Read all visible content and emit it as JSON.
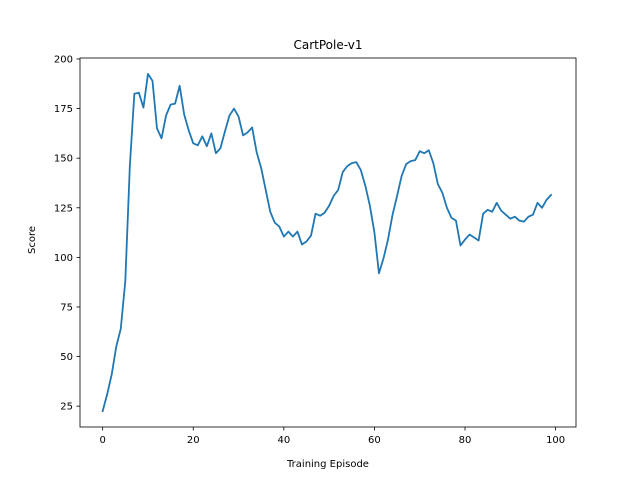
{
  "chart_data": {
    "type": "line",
    "title": "CartPole-v1",
    "xlabel": "Training Episode",
    "ylabel": "Score",
    "xlim": [
      -5,
      104.5
    ],
    "ylim": [
      14.5,
      200.5
    ],
    "xticks": [
      0,
      20,
      40,
      60,
      80,
      100
    ],
    "yticks": [
      25,
      50,
      75,
      100,
      125,
      150,
      175,
      200
    ],
    "grid": false,
    "legend": "none",
    "series": [
      {
        "color": "#1f77b4",
        "x": [
          0,
          1,
          2,
          3,
          4,
          5,
          6,
          7,
          8,
          9,
          10,
          11,
          12,
          13,
          14,
          15,
          16,
          17,
          18,
          19,
          20,
          21,
          22,
          23,
          24,
          25,
          26,
          27,
          28,
          29,
          30,
          31,
          32,
          33,
          34,
          35,
          36,
          37,
          38,
          39,
          40,
          41,
          42,
          43,
          44,
          45,
          46,
          47,
          48,
          49,
          50,
          51,
          52,
          53,
          54,
          55,
          56,
          57,
          58,
          59,
          60,
          61,
          62,
          63,
          64,
          65,
          66,
          67,
          68,
          69,
          70,
          71,
          72,
          73,
          74,
          75,
          76,
          77,
          78,
          79,
          80,
          81,
          82,
          83,
          84,
          85,
          86,
          87,
          88,
          89,
          90,
          91,
          92,
          93,
          94,
          95,
          96,
          97,
          98,
          99
        ],
        "values": [
          22.5,
          31,
          41,
          55,
          64,
          88,
          146,
          182.5,
          183,
          175.5,
          192.5,
          189,
          165,
          160,
          171.5,
          177,
          177.5,
          186.5,
          172,
          164,
          157.5,
          156.5,
          161,
          156,
          162.5,
          152.5,
          155,
          163.5,
          171.5,
          175,
          171,
          161.5,
          163,
          165.5,
          153,
          145,
          134,
          123,
          117.5,
          115.5,
          110.5,
          113,
          110.5,
          113,
          106.5,
          108,
          111,
          122,
          121,
          122.5,
          126,
          131,
          134,
          143,
          146,
          147.5,
          148,
          144,
          136,
          126,
          112.5,
          92,
          99.5,
          109,
          121.5,
          131,
          141,
          147,
          148.5,
          149,
          153.5,
          152.5,
          154,
          147.5,
          137,
          132.5,
          125,
          120,
          118.5,
          106,
          109,
          111.5,
          110,
          108.5,
          122,
          124,
          123,
          127.5,
          123.5,
          121.5,
          119.5,
          120.5,
          118.5,
          118,
          120.5,
          121.5,
          127.5,
          125,
          129,
          131.5
        ]
      }
    ]
  }
}
